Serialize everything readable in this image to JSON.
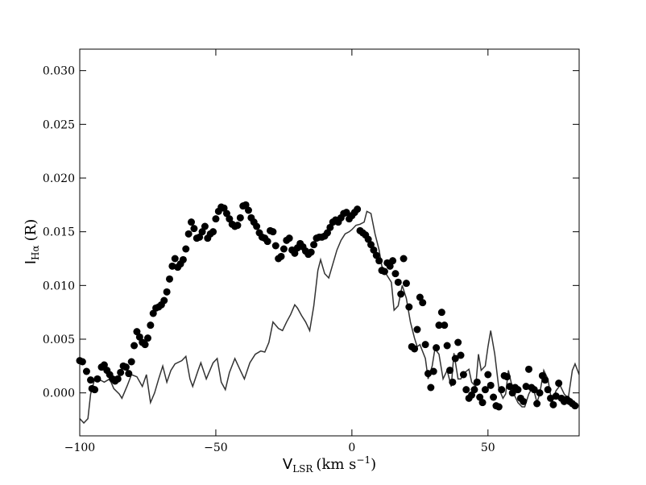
{
  "chart_data": {
    "type": "scatter",
    "xlabel": {
      "main": "V",
      "sub": "LSR",
      "rest": "(km s",
      "sup": "−1",
      "end": ")"
    },
    "ylabel": {
      "main": "I",
      "sub": "Hα",
      "rest": "(R)"
    },
    "xlim": [
      -100,
      83.5
    ],
    "ylim": [
      -0.004,
      0.032
    ],
    "xticks": [
      {
        "value": -100,
        "label": "−100"
      },
      {
        "value": -50,
        "label": "−50"
      },
      0,
      50
    ],
    "yticks": [
      {
        "value": 0,
        "label": "0.000"
      },
      0.005,
      {
        "value": 0.01,
        "label": "0.010"
      },
      0.015,
      {
        "value": 0.02,
        "label": "0.020"
      },
      0.025,
      {
        "value": 0.03,
        "label": "0.030"
      }
    ],
    "series": [
      {
        "type": "scatter",
        "color": "#000000",
        "x": [
          -100,
          -99,
          -97.5,
          -96,
          -95.5,
          -94.5,
          -93.5,
          -92,
          -91,
          -90,
          -89,
          -88,
          -87,
          -86,
          -85,
          -84,
          -83,
          -82,
          -81,
          -80,
          -79,
          -78,
          -77,
          -76,
          -75,
          -74,
          -73,
          -72,
          -71,
          -70,
          -69,
          -68,
          -67,
          -66,
          -65,
          -64,
          -63,
          -62,
          -61,
          -60,
          -59,
          -58,
          -57,
          -56,
          -55,
          -54,
          -53,
          -52,
          -51,
          -50,
          -49,
          -48,
          -47,
          -46,
          -45,
          -44,
          -43,
          -42,
          -41,
          -40,
          -39,
          -38,
          -37,
          -36,
          -35,
          -34,
          -33,
          -32,
          -31,
          -30,
          -29,
          -28,
          -27,
          -26,
          -25,
          -24,
          -23,
          -22,
          -21,
          -20,
          -19,
          -18,
          -17,
          -16,
          -15,
          -14,
          -13,
          -12,
          -11,
          -10,
          -9,
          -8,
          -7,
          -6,
          -5,
          -4,
          -3,
          -2,
          -1,
          0,
          1,
          2,
          3,
          4,
          5,
          6,
          7,
          8,
          9,
          10,
          11,
          12,
          13,
          14,
          15,
          16,
          17,
          18,
          19,
          20,
          21,
          22,
          23,
          24,
          25,
          26,
          27,
          28,
          29,
          30,
          31,
          32,
          33,
          34,
          35,
          36,
          37,
          38,
          39,
          40,
          41,
          42,
          43,
          44,
          45,
          46,
          47,
          48,
          49,
          50,
          51,
          52,
          53,
          54,
          55,
          56,
          57,
          58,
          59,
          60,
          61,
          62,
          63,
          64,
          65,
          66,
          67,
          68,
          69,
          70,
          71,
          72,
          73,
          74,
          75,
          76,
          77,
          78,
          79,
          80,
          81,
          82
        ],
        "values": [
          0.003,
          0.0029,
          0.002,
          0.0012,
          0.0004,
          0.0003,
          0.0013,
          0.0024,
          0.0026,
          0.0021,
          0.0017,
          0.0013,
          0.0011,
          0.0013,
          0.0019,
          0.0025,
          0.0024,
          0.0018,
          0.0029,
          0.0044,
          0.0057,
          0.0052,
          0.0047,
          0.0045,
          0.0051,
          0.0063,
          0.0074,
          0.0079,
          0.008,
          0.0082,
          0.0086,
          0.0094,
          0.0106,
          0.0118,
          0.0125,
          0.0117,
          0.012,
          0.0124,
          0.0134,
          0.0148,
          0.0159,
          0.0153,
          0.0144,
          0.0145,
          0.015,
          0.0155,
          0.0144,
          0.0148,
          0.015,
          0.0162,
          0.0169,
          0.0173,
          0.0172,
          0.0167,
          0.0162,
          0.0157,
          0.0155,
          0.0156,
          0.0163,
          0.0174,
          0.0175,
          0.017,
          0.0163,
          0.0159,
          0.0155,
          0.0149,
          0.0145,
          0.0144,
          0.0141,
          0.0151,
          0.015,
          0.0137,
          0.0125,
          0.0127,
          0.0134,
          0.0142,
          0.0144,
          0.0133,
          0.013,
          0.0135,
          0.0139,
          0.0136,
          0.0132,
          0.0129,
          0.0131,
          0.0138,
          0.0144,
          0.0145,
          0.0145,
          0.0146,
          0.0149,
          0.0154,
          0.0159,
          0.0161,
          0.0159,
          0.0163,
          0.0167,
          0.0168,
          0.0162,
          0.0165,
          0.0168,
          0.0171,
          0.0151,
          0.0149,
          0.0147,
          0.0143,
          0.0138,
          0.0133,
          0.0128,
          0.0123,
          0.0114,
          0.0113,
          0.0121,
          0.0118,
          0.0123,
          0.0111,
          0.0103,
          0.0092,
          0.0125,
          0.0102,
          0.008,
          0.0043,
          0.0041,
          0.0059,
          0.0089,
          0.0084,
          0.0045,
          0.0018,
          0.0005,
          0.002,
          0.0042,
          0.0063,
          0.0075,
          0.0063,
          0.0044,
          0.0021,
          0.001,
          0.0032,
          0.0047,
          0.0035,
          0.0017,
          0.0003,
          -0.0005,
          -0.0002,
          0.0003,
          0.001,
          -0.0004,
          -0.0009,
          0.0003,
          0.0017,
          0.0007,
          -0.0004,
          -0.0012,
          -0.0013,
          0.0003,
          0.0016,
          0.0015,
          0.0006,
          0,
          0.0005,
          0.0003,
          -0.0005,
          -0.0008,
          0.0006,
          0.0022,
          0.0005,
          0.0003,
          -0.001,
          0,
          0.0016,
          0.0012,
          0.0003,
          -0.0005,
          -0.0011,
          -0.0003,
          0.0009,
          -0.0005,
          -0.0008,
          -0.0006,
          -0.0008,
          -0.001,
          -0.0012
        ]
      },
      {
        "type": "line",
        "color": "#333333",
        "x": [
          -100,
          -98.5,
          -97,
          -96,
          -94.5,
          -92.5,
          -91,
          -89,
          -87.5,
          -85.5,
          -84.5,
          -82.5,
          -81,
          -79,
          -77,
          -75.5,
          -74,
          -72.5,
          -71,
          -69.5,
          -68,
          -66.5,
          -65,
          -62.5,
          -61,
          -59.5,
          -58.5,
          -56.5,
          -55.5,
          -53.5,
          -52.5,
          -51,
          -49.5,
          -48,
          -46.5,
          -45,
          -43,
          -41,
          -39.5,
          -37.5,
          -35.5,
          -33.5,
          -32,
          -30.5,
          -29,
          -27,
          -25.5,
          -24,
          -22.5,
          -21,
          -20,
          -18.5,
          -17,
          -15.5,
          -14,
          -12.5,
          -11.5,
          -10,
          -8.5,
          -7,
          -5.5,
          -4,
          -2.5,
          -1,
          0,
          1.5,
          3,
          4.5,
          5.5,
          7,
          8.5,
          10,
          11,
          12.5,
          14.5,
          15.5,
          17,
          18.5,
          20,
          21.5,
          23,
          24,
          25,
          27,
          28,
          29.5,
          30.5,
          32,
          33.5,
          35,
          36.5,
          37.5,
          39,
          40,
          41.5,
          43,
          44,
          45.5,
          46.5,
          47.5,
          49,
          50,
          51,
          52.5,
          54,
          55.5,
          56.5,
          57.5,
          59.5,
          61,
          62.5,
          63.5,
          65,
          66.5,
          68,
          69,
          70.5,
          72,
          73.5,
          75,
          76.5,
          78,
          79.5,
          81,
          82,
          83.5
        ],
        "values": [
          -0.0024,
          -0.0028,
          -0.0024,
          -0.0001,
          0.0013,
          0.0012,
          0.001,
          0.0013,
          0.0004,
          -0.0001,
          -0.0005,
          0.0007,
          0.0017,
          0.0015,
          0.0006,
          0.0017,
          -0.0009,
          0,
          0.0013,
          0.0025,
          0.001,
          0.0021,
          0.0027,
          0.003,
          0.0034,
          0.0013,
          0.0006,
          0.0021,
          0.0028,
          0.0013,
          0.0019,
          0.0028,
          0.0032,
          0.001,
          0.0003,
          0.0019,
          0.0032,
          0.0021,
          0.0013,
          0.0028,
          0.0036,
          0.0039,
          0.0038,
          0.0047,
          0.0066,
          0.006,
          0.0058,
          0.0066,
          0.0073,
          0.0082,
          0.0079,
          0.0072,
          0.0066,
          0.0058,
          0.0081,
          0.0114,
          0.0124,
          0.0111,
          0.0107,
          0.012,
          0.0133,
          0.0142,
          0.0148,
          0.015,
          0.0152,
          0.0156,
          0.0157,
          0.0159,
          0.0169,
          0.0167,
          0.0148,
          0.0133,
          0.0118,
          0.0111,
          0.0103,
          0.0077,
          0.0081,
          0.01,
          0.0088,
          0.0066,
          0.0051,
          0.0043,
          0.0045,
          0.0032,
          0.0013,
          0.0025,
          0.0041,
          0.0036,
          0.0013,
          0.0021,
          0.0006,
          0.0037,
          0.0013,
          0.0013,
          0.0019,
          0.0022,
          0.001,
          0.0006,
          0.0036,
          0.0021,
          0.0025,
          0.0043,
          0.0058,
          0.0036,
          0.0004,
          -0.0005,
          -0.0001,
          0.0021,
          -0.0001,
          -0.0009,
          -0.0013,
          -0.0013,
          -0.0001,
          0.0006,
          -0.0009,
          -0.0001,
          0.0021,
          0.0013,
          -0.0009,
          0.0002,
          0.0007,
          -0.0001,
          -0.0005,
          0.0021,
          0.0027,
          0.0017
        ]
      }
    ]
  }
}
